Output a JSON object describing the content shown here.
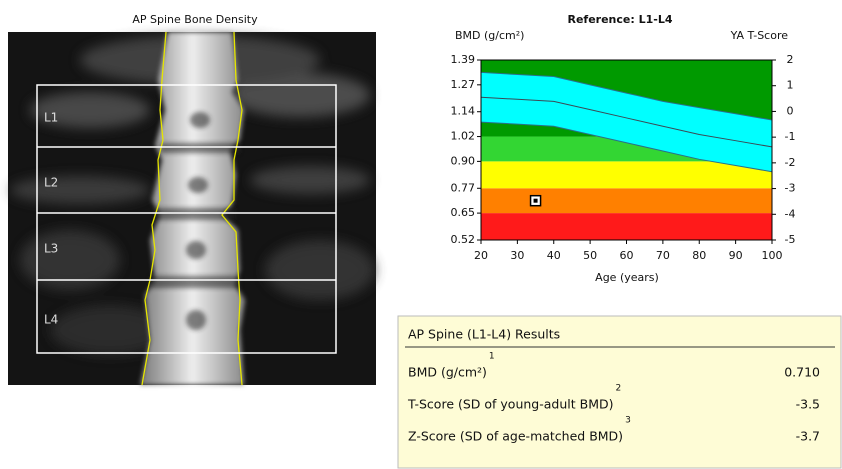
{
  "scan": {
    "title": "AP Spine Bone Density",
    "labels": [
      "L1",
      "L2",
      "L3",
      "L4"
    ]
  },
  "chart_data": {
    "type": "line",
    "title": "Reference: L1-L4",
    "ylabel": "BMD (g/cm²)",
    "y2label": "YA T-Score",
    "xlabel": "Age (years)",
    "xlim": [
      20,
      100
    ],
    "xticks": [
      20,
      30,
      40,
      50,
      60,
      70,
      80,
      90,
      100
    ],
    "ylim": [
      0.52,
      1.39
    ],
    "yticks": [
      1.39,
      1.27,
      1.14,
      1.02,
      {
        "value": 0.9,
        "label": "0.90"
      },
      0.77,
      0.65,
      0.52
    ],
    "y2lim": [
      -5,
      2
    ],
    "y2ticks": [
      2,
      1,
      0,
      -1,
      -2,
      -3,
      -4,
      -5
    ],
    "zones": [
      {
        "from": 0.52,
        "to": 0.65,
        "color": "#ff1a1a"
      },
      {
        "from": 0.65,
        "to": 0.77,
        "color": "#ff8000"
      },
      {
        "from": 0.77,
        "to": 0.9,
        "color": "#ffff00"
      },
      {
        "from": 0.9,
        "to": 1.02,
        "color": "#33d633"
      },
      {
        "from": 1.02,
        "to": 1.39,
        "color": "#009a00"
      }
    ],
    "band_color": "#00ffff",
    "x": [
      20,
      30,
      40,
      50,
      60,
      70,
      80,
      90,
      100
    ],
    "series": [
      {
        "color": "#2a6f8a",
        "values": [
          1.33,
          1.32,
          1.31,
          1.27,
          1.23,
          1.19,
          1.16,
          1.13,
          1.1
        ]
      },
      {
        "color": "#3a4a55",
        "values": [
          1.21,
          1.2,
          1.19,
          1.15,
          1.11,
          1.07,
          1.03,
          1.0,
          0.97
        ]
      },
      {
        "color": "#2a6f8a",
        "values": [
          1.09,
          1.08,
          1.07,
          1.03,
          0.99,
          0.95,
          0.91,
          0.88,
          0.85
        ]
      }
    ],
    "patient": {
      "x": 35,
      "y": 0.71
    }
  },
  "results": {
    "title": "AP Spine (L1-L4) Results",
    "rows": [
      {
        "label": "BMD (g/cm²)",
        "note": "1",
        "value": "0.710"
      },
      {
        "label": "T-Score (SD of young-adult BMD)",
        "note": "2",
        "value": "-3.5"
      },
      {
        "label": "Z-Score (SD of age-matched BMD)",
        "note": "3",
        "value": "-3.7"
      }
    ]
  }
}
